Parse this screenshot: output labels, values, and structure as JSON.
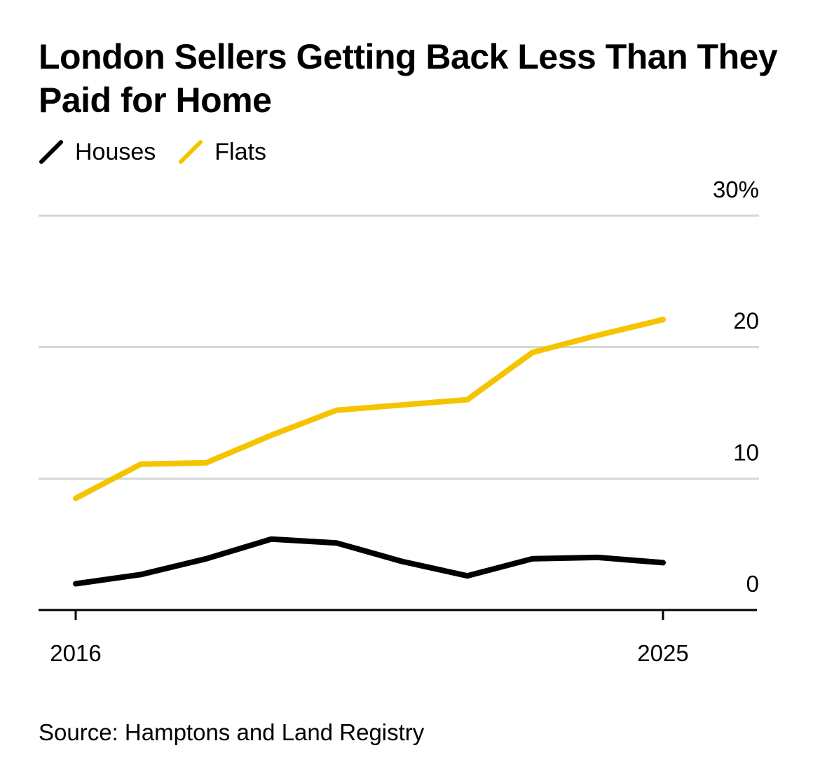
{
  "title": "London Sellers Getting Back Less Than They Paid for Home",
  "source": "Source: Hamptons and Land Registry",
  "legend": {
    "items": [
      {
        "label": "Houses",
        "color": "#000000"
      },
      {
        "label": "Flats",
        "color": "#F5C400"
      }
    ]
  },
  "chart_data": {
    "type": "line",
    "title": "London Sellers Getting Back Less Than They Paid for Home",
    "xlabel": "",
    "ylabel": "",
    "x": [
      2016,
      2017,
      2018,
      2019,
      2020,
      2021,
      2022,
      2023,
      2024,
      2025
    ],
    "series": [
      {
        "name": "Houses",
        "color": "#000000",
        "values": [
          2.0,
          2.7,
          3.9,
          5.4,
          5.1,
          3.7,
          2.6,
          3.9,
          4.0,
          3.6
        ]
      },
      {
        "name": "Flats",
        "color": "#F5C400",
        "values": [
          8.5,
          11.1,
          11.2,
          13.3,
          15.2,
          15.6,
          16.0,
          19.6,
          20.9,
          22.1
        ]
      }
    ],
    "ylim": [
      0,
      30
    ],
    "y_ticks": [
      {
        "value": 0,
        "label": "0"
      },
      {
        "value": 10,
        "label": "10"
      },
      {
        "value": 20,
        "label": "20"
      },
      {
        "value": 30,
        "label": "30%"
      }
    ],
    "x_ticks": [
      {
        "value": 2016,
        "label": "2016"
      },
      {
        "value": 2025,
        "label": "2025"
      }
    ],
    "grid": true,
    "y_axis_position": "right",
    "legend_position": "top-left"
  }
}
